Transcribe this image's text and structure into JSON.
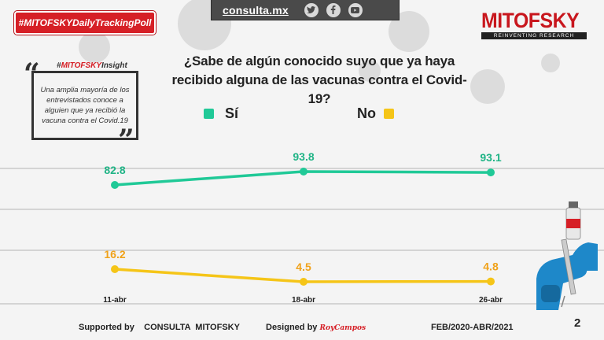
{
  "header": {
    "site_link": "consulta.mx",
    "hashtag": "#MITOFSKYDailyTrackingPoll",
    "logo_name": "MITOFSKY",
    "logo_tagline": "REINVENTING RESEARCH",
    "social_icons": [
      "twitter-icon",
      "facebook-icon",
      "youtube-icon"
    ]
  },
  "insight": {
    "head_prefix": "#",
    "head_brand": "MITOFSKY",
    "head_suffix": "Insight",
    "text": "Una amplia mayoría de los entrevistados conoce a alguien que ya recibió la vacuna contra el Covid.19"
  },
  "question": {
    "line1": "¿Sabe de algún conocido suyo que ya haya",
    "line2": "recibido alguna de las vacunas contra el Covid-19?"
  },
  "legend": {
    "si": "Sí",
    "no": "No"
  },
  "colors": {
    "si": "#20c997",
    "no": "#f5c518",
    "no_label": "#f0a21a",
    "brand_red": "#d61f26"
  },
  "chart_data": {
    "type": "line",
    "categories": [
      "11-abr",
      "18-abr",
      "26-abr"
    ],
    "series": [
      {
        "name": "Sí",
        "values": [
          82.8,
          93.8,
          93.1
        ]
      },
      {
        "name": "No",
        "values": [
          16.2,
          4.5,
          4.8
        ]
      }
    ],
    "value_labels": [
      [
        "82.8",
        "93.8",
        "93.1"
      ],
      [
        "16.2",
        "4.5",
        "4.8"
      ]
    ],
    "title": "¿Sabe de algún conocido suyo que ya haya recibido alguna de las vacunas contra el Covid-19?",
    "legend_position": "top",
    "grid": false
  },
  "footer": {
    "supported_by": "Supported by",
    "supporter": "CONSULTA  MITOFSKY",
    "designed_by": "Designed by",
    "designer": "RoyCampos",
    "period": "FEB/2020-ABR/2021",
    "page_number": "2"
  }
}
